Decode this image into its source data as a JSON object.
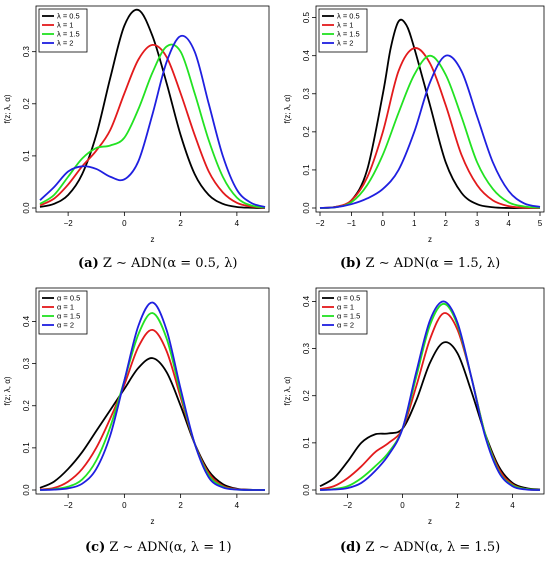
{
  "chart_data": [
    {
      "type": "line",
      "caption_label": "(a)",
      "caption_text": "Z ∼ ADN(α = 0.5, λ)",
      "xlabel": "z",
      "ylabel": "f(z; λ, α)",
      "xlim": [
        -3,
        5
      ],
      "ylim": [
        0,
        0.38
      ],
      "xticks": [
        -2,
        0,
        2,
        4
      ],
      "yticks": [
        0.0,
        0.1,
        0.2,
        0.3
      ],
      "ytick_labels": [
        "0.0",
        "0.1",
        "0.2",
        "0.3"
      ],
      "legend_position": "top-left",
      "series": [
        {
          "name": "λ = 0.5",
          "color": "#000000",
          "x": [
            -3,
            -2.5,
            -2,
            -1.5,
            -1,
            -0.5,
            0,
            0.5,
            1,
            1.5,
            2,
            2.5,
            3,
            3.5,
            4,
            4.5,
            5
          ],
          "y": [
            0.002,
            0.008,
            0.025,
            0.065,
            0.14,
            0.25,
            0.35,
            0.38,
            0.33,
            0.24,
            0.14,
            0.065,
            0.025,
            0.008,
            0.002,
            0.0005,
            0.0
          ]
        },
        {
          "name": "λ = 1",
          "color": "#e31a1c",
          "x": [
            -3,
            -2.5,
            -2,
            -1.5,
            -1,
            -0.5,
            0,
            0.5,
            1,
            1.5,
            2,
            2.5,
            3,
            3.5,
            4,
            4.5,
            5
          ],
          "y": [
            0.005,
            0.018,
            0.045,
            0.08,
            0.11,
            0.15,
            0.22,
            0.285,
            0.313,
            0.29,
            0.22,
            0.14,
            0.07,
            0.03,
            0.01,
            0.003,
            0.0005
          ]
        },
        {
          "name": "λ = 1.5",
          "color": "#22e222",
          "x": [
            -3,
            -2.5,
            -2,
            -1.5,
            -1,
            -0.5,
            0,
            0.5,
            1,
            1.5,
            2,
            2.5,
            3,
            3.5,
            4,
            4.5,
            5
          ],
          "y": [
            0.008,
            0.025,
            0.06,
            0.095,
            0.115,
            0.12,
            0.135,
            0.19,
            0.26,
            0.31,
            0.3,
            0.22,
            0.13,
            0.06,
            0.02,
            0.005,
            0.001
          ]
        },
        {
          "name": "λ = 2",
          "color": "#1f1fe0",
          "x": [
            -3,
            -2.5,
            -2,
            -1.5,
            -1,
            -0.5,
            0,
            0.5,
            1,
            1.5,
            2,
            2.5,
            3,
            3.5,
            4,
            4.5,
            5
          ],
          "y": [
            0.015,
            0.04,
            0.07,
            0.08,
            0.075,
            0.06,
            0.055,
            0.09,
            0.18,
            0.28,
            0.33,
            0.3,
            0.2,
            0.1,
            0.035,
            0.01,
            0.002
          ]
        }
      ]
    },
    {
      "type": "line",
      "caption_label": "(b)",
      "caption_text": "Z ∼ ADN(α = 1.5, λ)",
      "xlabel": "z",
      "ylabel": "f(z; λ, α)",
      "xlim": [
        -2,
        5
      ],
      "ylim": [
        0,
        0.52
      ],
      "xticks": [
        -2,
        -1,
        0,
        1,
        2,
        3,
        4,
        5
      ],
      "yticks": [
        0.0,
        0.1,
        0.2,
        0.3,
        0.4,
        0.5
      ],
      "ytick_labels": [
        "0.0",
        "0.1",
        "0.2",
        "0.3",
        "0.4",
        "0.5"
      ],
      "legend_position": "top-left",
      "series": [
        {
          "name": "λ = 0.5",
          "color": "#000000",
          "x": [
            -2,
            -1.5,
            -1,
            -0.5,
            0,
            0.25,
            0.5,
            0.75,
            1,
            1.5,
            2,
            2.5,
            3,
            3.5,
            4,
            4.5,
            5
          ],
          "y": [
            0.0,
            0.003,
            0.02,
            0.1,
            0.3,
            0.42,
            0.49,
            0.48,
            0.42,
            0.27,
            0.12,
            0.04,
            0.01,
            0.002,
            0.0,
            0.0,
            0.0
          ]
        },
        {
          "name": "λ = 1",
          "color": "#e31a1c",
          "x": [
            -2,
            -1.5,
            -1,
            -0.5,
            0,
            0.5,
            1,
            1.5,
            2,
            2.5,
            3,
            3.5,
            4,
            4.5,
            5
          ],
          "y": [
            0.0,
            0.003,
            0.02,
            0.08,
            0.2,
            0.36,
            0.42,
            0.38,
            0.27,
            0.14,
            0.06,
            0.02,
            0.005,
            0.001,
            0.0
          ]
        },
        {
          "name": "λ = 1.5",
          "color": "#22e222",
          "x": [
            -2,
            -1.5,
            -1,
            -0.5,
            0,
            0.5,
            1,
            1.5,
            2,
            2.5,
            3,
            3.5,
            4,
            4.5,
            5
          ],
          "y": [
            0.0,
            0.002,
            0.015,
            0.06,
            0.14,
            0.25,
            0.35,
            0.4,
            0.35,
            0.24,
            0.12,
            0.05,
            0.015,
            0.004,
            0.001
          ]
        },
        {
          "name": "λ = 2",
          "color": "#1f1fe0",
          "x": [
            -2,
            -1.5,
            -1,
            -0.5,
            0,
            0.5,
            1,
            1.5,
            2,
            2.5,
            3,
            3.5,
            4,
            4.5,
            5
          ],
          "y": [
            0.0,
            0.002,
            0.01,
            0.025,
            0.05,
            0.1,
            0.2,
            0.33,
            0.4,
            0.36,
            0.24,
            0.12,
            0.045,
            0.012,
            0.003
          ]
        }
      ]
    },
    {
      "type": "line",
      "caption_label": "(c)",
      "caption_text": "Z ∼ ADN(α, λ = 1)",
      "xlabel": "z",
      "ylabel": "f(z; λ, α)",
      "xlim": [
        -3,
        5
      ],
      "ylim": [
        0,
        0.47
      ],
      "xticks": [
        -2,
        0,
        2,
        4
      ],
      "yticks": [
        0.0,
        0.1,
        0.2,
        0.3,
        0.4
      ],
      "ytick_labels": [
        "0.0",
        "0.1",
        "0.2",
        "0.3",
        "0.4"
      ],
      "legend_position": "top-left",
      "series": [
        {
          "name": "α = 0.5",
          "color": "#000000",
          "x": [
            -3,
            -2.5,
            -2,
            -1.5,
            -1,
            -0.5,
            0,
            0.5,
            1,
            1.5,
            2,
            2.5,
            3,
            3.5,
            4,
            4.5,
            5
          ],
          "y": [
            0.005,
            0.02,
            0.05,
            0.09,
            0.14,
            0.19,
            0.24,
            0.29,
            0.313,
            0.28,
            0.2,
            0.11,
            0.045,
            0.014,
            0.003,
            0.0005,
            0.0
          ]
        },
        {
          "name": "α = 1",
          "color": "#e31a1c",
          "x": [
            -3,
            -2.5,
            -2,
            -1.5,
            -1,
            -0.5,
            0,
            0.5,
            1,
            1.5,
            2,
            2.5,
            3,
            3.5,
            4,
            4.5,
            5
          ],
          "y": [
            0.001,
            0.005,
            0.02,
            0.05,
            0.1,
            0.17,
            0.25,
            0.34,
            0.38,
            0.33,
            0.22,
            0.11,
            0.04,
            0.01,
            0.002,
            0.0,
            0.0
          ]
        },
        {
          "name": "α = 1.5",
          "color": "#22e222",
          "x": [
            -3,
            -2.5,
            -2,
            -1.5,
            -1,
            -0.5,
            0,
            0.5,
            1,
            1.5,
            2,
            2.5,
            3,
            3.5,
            4,
            4.5,
            5
          ],
          "y": [
            0.0,
            0.002,
            0.008,
            0.025,
            0.07,
            0.15,
            0.26,
            0.37,
            0.42,
            0.36,
            0.23,
            0.11,
            0.035,
            0.008,
            0.001,
            0.0,
            0.0
          ]
        },
        {
          "name": "α = 2",
          "color": "#1f1fe0",
          "x": [
            -3,
            -2.5,
            -2,
            -1.5,
            -1,
            -0.5,
            0,
            0.5,
            1,
            1.5,
            2,
            2.5,
            3,
            3.5,
            4,
            4.5,
            5
          ],
          "y": [
            0.0,
            0.001,
            0.004,
            0.015,
            0.05,
            0.13,
            0.26,
            0.39,
            0.445,
            0.38,
            0.24,
            0.11,
            0.03,
            0.006,
            0.001,
            0.0,
            0.0
          ]
        }
      ]
    },
    {
      "type": "line",
      "caption_label": "(d)",
      "caption_text": "Z ∼ ADN(α, λ = 1.5)",
      "xlabel": "z",
      "ylabel": "f(z; λ, α)",
      "xlim": [
        -3,
        5
      ],
      "ylim": [
        0,
        0.42
      ],
      "xticks": [
        -2,
        0,
        2,
        4
      ],
      "yticks": [
        0.0,
        0.1,
        0.2,
        0.3,
        0.4
      ],
      "ytick_labels": [
        "0.0",
        "0.1",
        "0.2",
        "0.3",
        "0.4"
      ],
      "legend_position": "top-left",
      "series": [
        {
          "name": "α = 0.5",
          "color": "#000000",
          "x": [
            -3,
            -2.5,
            -2,
            -1.5,
            -1,
            -0.5,
            0,
            0.5,
            1,
            1.5,
            2,
            2.5,
            3,
            3.5,
            4,
            4.5,
            5
          ],
          "y": [
            0.008,
            0.025,
            0.06,
            0.1,
            0.118,
            0.12,
            0.13,
            0.19,
            0.27,
            0.313,
            0.29,
            0.21,
            0.12,
            0.05,
            0.015,
            0.004,
            0.001
          ]
        },
        {
          "name": "α = 1",
          "color": "#e31a1c",
          "x": [
            -3,
            -2.5,
            -2,
            -1.5,
            -1,
            -0.5,
            0,
            0.5,
            1,
            1.5,
            2,
            2.5,
            3,
            3.5,
            4,
            4.5,
            5
          ],
          "y": [
            0.002,
            0.008,
            0.025,
            0.05,
            0.08,
            0.1,
            0.13,
            0.22,
            0.32,
            0.375,
            0.34,
            0.24,
            0.12,
            0.045,
            0.012,
            0.002,
            0.0
          ]
        },
        {
          "name": "α = 1.5",
          "color": "#22e222",
          "x": [
            -3,
            -2.5,
            -2,
            -1.5,
            -1,
            -0.5,
            0,
            0.5,
            1,
            1.5,
            2,
            2.5,
            3,
            3.5,
            4,
            4.5,
            5
          ],
          "y": [
            0.0,
            0.002,
            0.008,
            0.025,
            0.05,
            0.08,
            0.13,
            0.24,
            0.35,
            0.395,
            0.35,
            0.24,
            0.12,
            0.04,
            0.01,
            0.002,
            0.0
          ]
        },
        {
          "name": "α = 2",
          "color": "#1f1fe0",
          "x": [
            -3,
            -2.5,
            -2,
            -1.5,
            -1,
            -0.5,
            0,
            0.5,
            1,
            1.5,
            2,
            2.5,
            3,
            3.5,
            4,
            4.5,
            5
          ],
          "y": [
            0.0,
            0.001,
            0.004,
            0.015,
            0.04,
            0.075,
            0.13,
            0.25,
            0.36,
            0.4,
            0.355,
            0.24,
            0.115,
            0.038,
            0.008,
            0.001,
            0.0
          ]
        }
      ]
    }
  ]
}
